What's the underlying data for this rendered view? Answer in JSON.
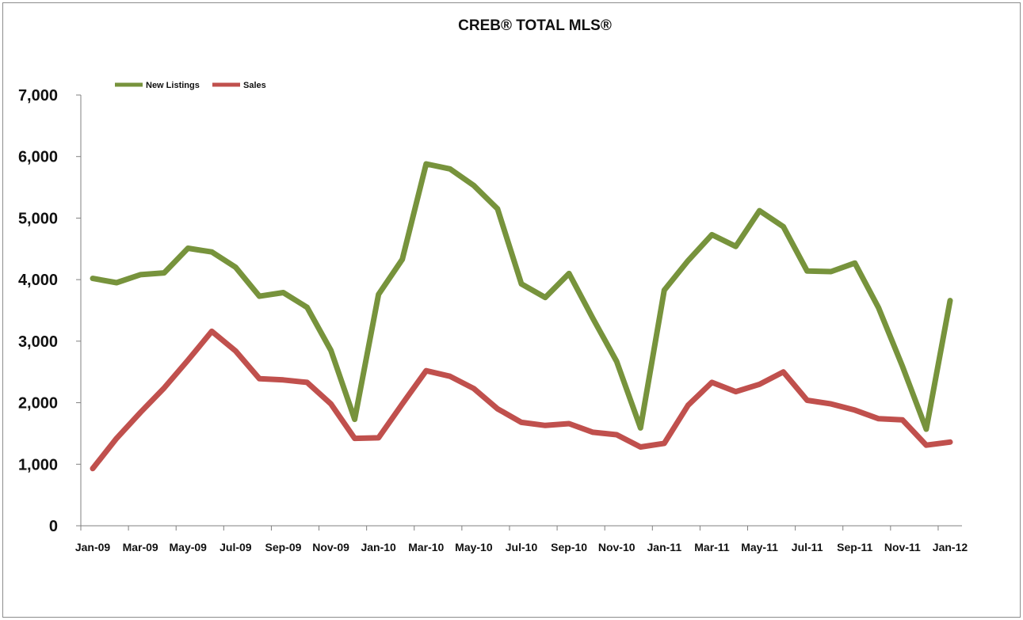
{
  "chart_data": {
    "type": "line",
    "title": "CREB® TOTAL MLS®",
    "xlabel": "",
    "ylabel": "",
    "ylim": [
      0,
      7000
    ],
    "yticks": [
      "0",
      "1,000",
      "2,000",
      "3,000",
      "4,000",
      "5,000",
      "6,000",
      "7,000"
    ],
    "ytick_values": [
      0,
      1000,
      2000,
      3000,
      4000,
      5000,
      6000,
      7000
    ],
    "grid": false,
    "legend_position": "top-left",
    "xtick_labels": [
      "Jan-09",
      "Mar-09",
      "May-09",
      "Jul-09",
      "Sep-09",
      "Nov-09",
      "Jan-10",
      "Mar-10",
      "May-10",
      "Jul-10",
      "Sep-10",
      "Nov-10",
      "Jan-11",
      "Mar-11",
      "May-11",
      "Jul-11",
      "Sep-11",
      "Nov-11",
      "Jan-12"
    ],
    "x": [
      "Jan-09",
      "Feb-09",
      "Mar-09",
      "Apr-09",
      "May-09",
      "Jun-09",
      "Jul-09",
      "Aug-09",
      "Sep-09",
      "Oct-09",
      "Nov-09",
      "Dec-09",
      "Jan-10",
      "Feb-10",
      "Mar-10",
      "Apr-10",
      "May-10",
      "Jun-10",
      "Jul-10",
      "Aug-10",
      "Sep-10",
      "Oct-10",
      "Nov-10",
      "Dec-10",
      "Jan-11",
      "Feb-11",
      "Mar-11",
      "Apr-11",
      "May-11",
      "Jun-11",
      "Jul-11",
      "Aug-11",
      "Sep-11",
      "Oct-11",
      "Nov-11",
      "Dec-11",
      "Jan-12"
    ],
    "series": [
      {
        "name": "New Listings",
        "color": "#77933c",
        "values": [
          4020,
          3950,
          4080,
          4110,
          4510,
          4450,
          4200,
          3730,
          3790,
          3550,
          2850,
          1730,
          3760,
          4330,
          5880,
          5800,
          5530,
          5150,
          3930,
          3710,
          4100,
          3370,
          2670,
          1590,
          3830,
          4310,
          4730,
          4540,
          5120,
          4860,
          4140,
          4130,
          4270,
          3540,
          2590,
          1570,
          3660
        ]
      },
      {
        "name": "Sales",
        "color": "#c0504d",
        "values": [
          930,
          1420,
          1840,
          2240,
          2690,
          3160,
          2840,
          2390,
          2370,
          2330,
          1980,
          1420,
          1430,
          1980,
          2520,
          2430,
          2230,
          1900,
          1680,
          1630,
          1660,
          1520,
          1480,
          1280,
          1340,
          1960,
          2330,
          2180,
          2300,
          2500,
          2040,
          1980,
          1880,
          1740,
          1720,
          1310,
          1360
        ]
      }
    ]
  }
}
